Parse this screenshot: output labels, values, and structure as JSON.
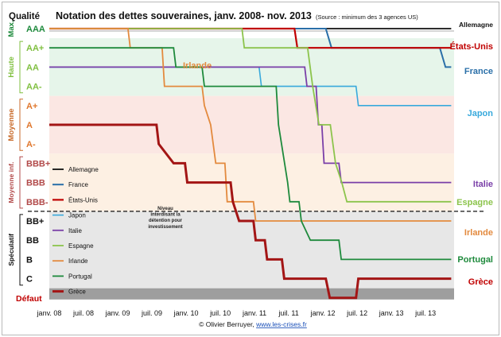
{
  "chart_data": {
    "type": "line",
    "title": "Notation des dettes souveraines, janv. 2008- nov. 2013",
    "subtitle": "(Source : minimum des 3 agences US)",
    "quality_label": "Qualité",
    "categories": [
      "janv. 08",
      "juil. 08",
      "janv. 09",
      "juil. 09",
      "janv. 10",
      "juil. 10",
      "janv. 11",
      "juil. 11",
      "janv. 12",
      "juil. 12",
      "janv. 13",
      "juil. 13"
    ],
    "ratings": [
      "AAA",
      "AA+",
      "AA",
      "AA-",
      "A+",
      "A",
      "A-",
      "BBB+",
      "BBB",
      "BBB-",
      "BB+",
      "BB",
      "B",
      "C",
      "Défaut"
    ],
    "rating_colors": {
      "AAA": "#1e8a3c",
      "AA+": "#7fbf3f",
      "AA": "#7fbf3f",
      "AA-": "#7fbf3f",
      "A+": "#e0782f",
      "A": "#e0782f",
      "A-": "#e0782f",
      "BBB+": "#b24a4a",
      "BBB": "#b24a4a",
      "BBB-": "#b24a4a",
      "BB+": "#111111",
      "BB": "#111111",
      "B": "#111111",
      "C": "#111111",
      "Défaut": "#c00000"
    },
    "bands": [
      {
        "label": "Max.",
        "from": "AAA",
        "to": "AAA",
        "color": "#ffffff",
        "label_color": "#1e8a3c"
      },
      {
        "label": "Haute",
        "from": "AA+",
        "to": "AA-",
        "color": "#e6f5ea",
        "label_color": "#7fbf3f"
      },
      {
        "label": "Moyenne",
        "from": "A+",
        "to": "A-",
        "color": "#fbe7e3",
        "label_color": "#c86a2a"
      },
      {
        "label": "Moyenne inf.",
        "from": "BBB+",
        "to": "BBB-",
        "color": "#fdf0e3",
        "label_color": "#b24a4a"
      },
      {
        "label": "Spéculatif",
        "from": "BB+",
        "to": "C",
        "color": "#e7e7e7",
        "label_color": "#111111"
      }
    ],
    "threshold": {
      "text": "Niveau interdisant la détention pour investissement",
      "between": [
        "BBB-",
        "BB+"
      ]
    },
    "series": [
      {
        "name": "Allemagne",
        "color": "#111111",
        "width": 1.8,
        "end_label": "Allemagne",
        "end_color": "#111111",
        "points": [
          [
            0,
            0
          ],
          [
            70.5,
            0
          ]
        ]
      },
      {
        "name": "France",
        "color": "#2a6fa8",
        "width": 2,
        "end_label": "France",
        "end_color": "#2a6fa8",
        "points": [
          [
            0,
            0
          ],
          [
            48.5,
            0
          ],
          [
            49.5,
            1
          ],
          [
            68.5,
            1
          ],
          [
            69.5,
            2
          ],
          [
            70.5,
            2
          ]
        ]
      },
      {
        "name": "États-Unis",
        "color": "#c00000",
        "width": 2.2,
        "end_label": "États-Unis",
        "end_color": "#c00000",
        "points": [
          [
            0,
            0
          ],
          [
            43,
            0
          ],
          [
            43.5,
            1
          ],
          [
            70.5,
            1
          ]
        ]
      },
      {
        "name": "Japon",
        "color": "#38a9dc",
        "width": 1.6,
        "end_label": "Japon",
        "end_color": "#38a9dc",
        "points": [
          [
            0,
            2
          ],
          [
            36.8,
            2
          ],
          [
            37.2,
            3
          ],
          [
            53.8,
            3
          ],
          [
            54.2,
            4
          ],
          [
            70.5,
            4
          ]
        ]
      },
      {
        "name": "Italie",
        "color": "#7a3fa8",
        "width": 1.8,
        "end_label": "Italie",
        "end_color": "#7a3fa8",
        "points": [
          [
            0,
            2
          ],
          [
            44.8,
            2
          ],
          [
            45.2,
            3
          ],
          [
            46.8,
            3
          ],
          [
            47.2,
            5
          ],
          [
            47.8,
            5
          ],
          [
            48.2,
            7
          ],
          [
            50.8,
            7
          ],
          [
            51.2,
            8
          ],
          [
            70.5,
            8
          ]
        ]
      },
      {
        "name": "Espagne",
        "color": "#8cc44c",
        "width": 1.8,
        "end_label": "Espagne",
        "end_color": "#8cc44c",
        "points": [
          [
            0,
            0
          ],
          [
            33.8,
            0
          ],
          [
            34.2,
            1
          ],
          [
            45.3,
            1
          ],
          [
            46.2,
            3
          ],
          [
            47.3,
            5
          ],
          [
            49.3,
            5
          ],
          [
            50.2,
            7
          ],
          [
            51.3,
            8
          ],
          [
            52.2,
            9
          ],
          [
            70.5,
            9
          ]
        ]
      },
      {
        "name": "Irlande",
        "color": "#e38a3e",
        "width": 1.8,
        "end_label": "Irlande",
        "end_color": "#e38a3e",
        "points": [
          [
            0,
            0
          ],
          [
            13.8,
            0
          ],
          [
            14.2,
            1
          ],
          [
            19.8,
            1
          ],
          [
            20.2,
            3
          ],
          [
            26.8,
            3
          ],
          [
            27.2,
            4
          ],
          [
            28.3,
            5
          ],
          [
            29.2,
            7
          ],
          [
            30.8,
            7
          ],
          [
            31.2,
            9
          ],
          [
            35.8,
            9
          ],
          [
            36.2,
            10
          ],
          [
            70.5,
            10
          ]
        ]
      },
      {
        "name": "Portugal",
        "color": "#1e8a3c",
        "width": 1.8,
        "end_label": "Portugal",
        "end_color": "#1e8a3c",
        "points": [
          [
            0,
            1
          ],
          [
            21.8,
            1
          ],
          [
            22.2,
            2
          ],
          [
            26.8,
            2
          ],
          [
            27.2,
            3
          ],
          [
            39.8,
            3
          ],
          [
            40.2,
            5
          ],
          [
            41.8,
            8
          ],
          [
            42.2,
            9
          ],
          [
            43.8,
            9
          ],
          [
            44.2,
            10
          ],
          [
            45.8,
            11
          ],
          [
            46.2,
            11
          ],
          [
            50.8,
            11
          ],
          [
            51.2,
            12
          ],
          [
            70.5,
            12
          ]
        ]
      },
      {
        "name": "Grèce",
        "color": "#a31515",
        "width": 3,
        "end_label": "Grèce",
        "end_color": "#c00000",
        "points": [
          [
            0,
            5
          ],
          [
            18.8,
            5
          ],
          [
            19.2,
            6
          ],
          [
            21.8,
            7
          ],
          [
            23.8,
            7
          ],
          [
            24.2,
            8
          ],
          [
            31.8,
            8
          ],
          [
            32.2,
            9
          ],
          [
            33.3,
            10
          ],
          [
            35.8,
            10
          ],
          [
            36.2,
            11
          ],
          [
            37.8,
            11
          ],
          [
            38.2,
            12
          ],
          [
            40.8,
            12
          ],
          [
            41.2,
            13
          ],
          [
            43.8,
            13
          ],
          [
            44.2,
            13
          ],
          [
            48.5,
            13
          ],
          [
            49.2,
            14
          ],
          [
            53.8,
            14
          ],
          [
            54.2,
            13
          ],
          [
            70.5,
            13
          ]
        ]
      }
    ],
    "legend_order": [
      "Allemagne",
      "France",
      "États-Unis",
      "Japon",
      "Italie",
      "Espagne",
      "Irlande",
      "Portugal",
      "Grèce"
    ],
    "in_chart_label": {
      "text": "Irlande",
      "color": "#e38a3e"
    },
    "credit": {
      "text": "© Olivier Berruyer, ",
      "link": "www.les-crises.fr"
    }
  }
}
